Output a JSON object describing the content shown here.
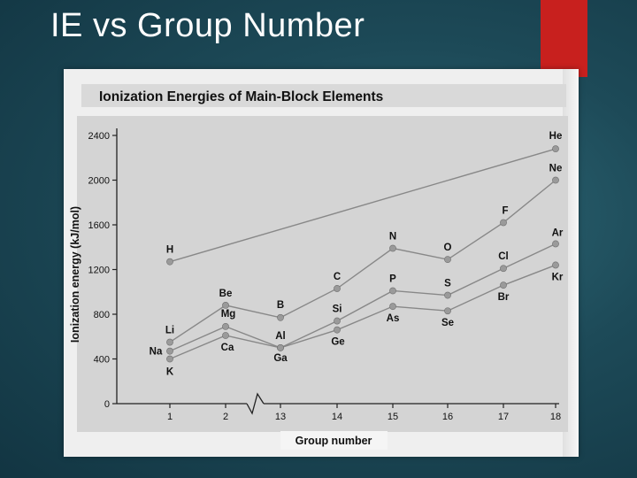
{
  "slide": {
    "title": "IE vs Group Number"
  },
  "colors": {
    "slide_background": "#1d4a58",
    "accent_bar": "#c8201e",
    "series_line": "#888888",
    "marker": "#9a9a9a",
    "plot_background": "#d4d4d4"
  },
  "chart_data": {
    "type": "line",
    "title": "Ionization Energies of Main-Block Elements",
    "xlabel": "Group number",
    "ylabel": "Ionization energy (kJ/mol)",
    "categories": [
      "1",
      "2",
      "13",
      "14",
      "15",
      "16",
      "17",
      "18"
    ],
    "yticks": [
      "0",
      "400",
      "800",
      "1200",
      "1600",
      "2000",
      "2400"
    ],
    "ylim": [
      0,
      2400
    ],
    "axis_break": "between 2 and 13",
    "grid": false,
    "series": [
      {
        "points": [
          {
            "x": "1",
            "y": 1270,
            "label": "H"
          },
          {
            "x": "18",
            "y": 2280,
            "label": "He"
          }
        ]
      },
      {
        "points": [
          {
            "x": "1",
            "y": 550,
            "label": "Li"
          },
          {
            "x": "2",
            "y": 880,
            "label": "Be"
          },
          {
            "x": "13",
            "y": 770,
            "label": "B"
          },
          {
            "x": "14",
            "y": 1030,
            "label": "C"
          },
          {
            "x": "15",
            "y": 1390,
            "label": "N"
          },
          {
            "x": "16",
            "y": 1290,
            "label": "O"
          },
          {
            "x": "17",
            "y": 1620,
            "label": "F"
          },
          {
            "x": "18",
            "y": 2000,
            "label": "Ne"
          }
        ]
      },
      {
        "points": [
          {
            "x": "1",
            "y": 470,
            "label": "Na"
          },
          {
            "x": "2",
            "y": 690,
            "label": "Mg"
          },
          {
            "x": "13",
            "y": 500,
            "label": "Al"
          },
          {
            "x": "14",
            "y": 740,
            "label": "Si"
          },
          {
            "x": "15",
            "y": 1010,
            "label": "P"
          },
          {
            "x": "16",
            "y": 970,
            "label": "S"
          },
          {
            "x": "17",
            "y": 1210,
            "label": "Cl"
          },
          {
            "x": "18",
            "y": 1430,
            "label": "Ar"
          }
        ]
      },
      {
        "points": [
          {
            "x": "1",
            "y": 400,
            "label": "K"
          },
          {
            "x": "2",
            "y": 610,
            "label": "Ca"
          },
          {
            "x": "13",
            "y": 500,
            "label": "Ga"
          },
          {
            "x": "14",
            "y": 660,
            "label": "Ge"
          },
          {
            "x": "15",
            "y": 870,
            "label": "As"
          },
          {
            "x": "16",
            "y": 830,
            "label": "Se"
          },
          {
            "x": "17",
            "y": 1060,
            "label": "Br"
          },
          {
            "x": "18",
            "y": 1240,
            "label": "Kr"
          }
        ]
      }
    ]
  }
}
